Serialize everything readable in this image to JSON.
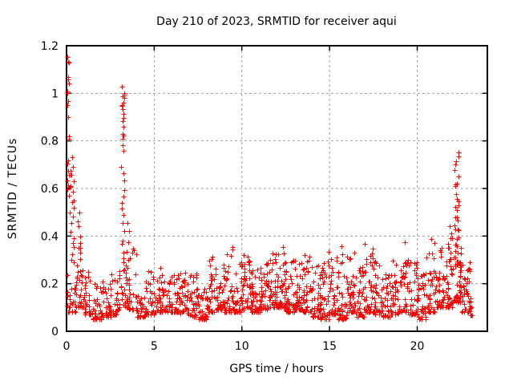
{
  "chart_data": {
    "type": "scatter",
    "title": "Day 210 of 2023, SRMTID for receiver aqui",
    "xlabel": "GPS time / hours",
    "ylabel": "SRMTID / TECUs",
    "xlim": [
      0,
      24
    ],
    "ylim": [
      0,
      1.2
    ],
    "xticks": [
      0,
      5,
      10,
      15,
      20
    ],
    "yticks": [
      0,
      0.2,
      0.4,
      0.6,
      0.8,
      1,
      1.2
    ],
    "grid": true,
    "legend": "none",
    "marker": "plus",
    "marker_color": "#ff0000",
    "grid_color": "#9e9e9e",
    "border_color": "#000000",
    "background": "#ffffff",
    "series_name": "SRMTID",
    "peak_columns": [
      {
        "x": 0.07,
        "jitter": 0.08,
        "ys": [
          1.15,
          1.13,
          1.12,
          1.07,
          1.06,
          1.05,
          1.02,
          1.0,
          0.97,
          0.95,
          0.9,
          0.81,
          0.8,
          0.72,
          0.7,
          0.68,
          0.66,
          0.64,
          0.62,
          0.6,
          0.58
        ]
      },
      {
        "x": 0.32,
        "jitter": 0.12,
        "ys": [
          0.72,
          0.7,
          0.68,
          0.66,
          0.65,
          0.63,
          0.62,
          0.6,
          0.58,
          0.56,
          0.55,
          0.52,
          0.5,
          0.48,
          0.45,
          0.42,
          0.4,
          0.38,
          0.35,
          0.33,
          0.3,
          0.28
        ]
      },
      {
        "x": 0.72,
        "jitter": 0.15,
        "ys": [
          0.5,
          0.46,
          0.43,
          0.4,
          0.38,
          0.36,
          0.34,
          0.32,
          0.3,
          0.28,
          0.26,
          0.24,
          0.22
        ]
      },
      {
        "x": 3.22,
        "jitter": 0.09,
        "ys": [
          1.02,
          1.0,
          0.99,
          0.98,
          0.97,
          0.96,
          0.95,
          0.94,
          0.93,
          0.92,
          0.9,
          0.88,
          0.86,
          0.84,
          0.82,
          0.8,
          0.78,
          0.75,
          0.7,
          0.66,
          0.63,
          0.6,
          0.57,
          0.54,
          0.51,
          0.48,
          0.45,
          0.42,
          0.39,
          0.36,
          0.33,
          0.3,
          0.28,
          0.26
        ]
      },
      {
        "x": 3.5,
        "jitter": 0.12,
        "ys": [
          0.46,
          0.42,
          0.38,
          0.34,
          0.31,
          0.28,
          0.25,
          0.22,
          0.2
        ]
      },
      {
        "x": 21.9,
        "jitter": 0.1,
        "ys": [
          0.44,
          0.41,
          0.38,
          0.35,
          0.32,
          0.3
        ]
      },
      {
        "x": 22.25,
        "jitter": 0.11,
        "ys": [
          0.75,
          0.73,
          0.72,
          0.7,
          0.68,
          0.65,
          0.63,
          0.62,
          0.6,
          0.58,
          0.56,
          0.55,
          0.53,
          0.52,
          0.5,
          0.48,
          0.47,
          0.46,
          0.45,
          0.44,
          0.43,
          0.42,
          0.4,
          0.38,
          0.37,
          0.36,
          0.35,
          0.34,
          0.33,
          0.32,
          0.3,
          0.29,
          0.28
        ]
      },
      {
        "x": 22.45,
        "jitter": 0.08,
        "ys": [
          0.35,
          0.32,
          0.3,
          0.28,
          0.26,
          0.24,
          0.22,
          0.2,
          0.18
        ]
      }
    ],
    "density_bins": [
      [
        0.0,
        0.5,
        0.08,
        0.25,
        22
      ],
      [
        0.5,
        1.0,
        0.1,
        0.33,
        26
      ],
      [
        1.0,
        1.5,
        0.07,
        0.28,
        30
      ],
      [
        1.5,
        2.0,
        0.05,
        0.2,
        34
      ],
      [
        2.0,
        2.5,
        0.06,
        0.22,
        34
      ],
      [
        2.5,
        3.0,
        0.07,
        0.3,
        30
      ],
      [
        3.0,
        3.5,
        0.1,
        0.27,
        26
      ],
      [
        3.5,
        4.0,
        0.09,
        0.38,
        26
      ],
      [
        4.0,
        4.5,
        0.06,
        0.16,
        30
      ],
      [
        4.5,
        5.0,
        0.07,
        0.26,
        30
      ],
      [
        5.0,
        5.5,
        0.08,
        0.3,
        32
      ],
      [
        5.5,
        6.0,
        0.08,
        0.24,
        32
      ],
      [
        6.0,
        6.5,
        0.08,
        0.26,
        32
      ],
      [
        6.5,
        7.0,
        0.07,
        0.25,
        32
      ],
      [
        7.0,
        7.5,
        0.06,
        0.25,
        34
      ],
      [
        7.5,
        8.0,
        0.05,
        0.18,
        34
      ],
      [
        8.0,
        8.5,
        0.08,
        0.33,
        36
      ],
      [
        8.5,
        9.0,
        0.09,
        0.31,
        36
      ],
      [
        9.0,
        9.5,
        0.08,
        0.37,
        36
      ],
      [
        9.5,
        10.0,
        0.08,
        0.3,
        36
      ],
      [
        10.0,
        10.5,
        0.09,
        0.33,
        40
      ],
      [
        10.5,
        11.0,
        0.08,
        0.26,
        40
      ],
      [
        11.0,
        11.5,
        0.09,
        0.3,
        40
      ],
      [
        11.5,
        12.0,
        0.1,
        0.36,
        40
      ],
      [
        12.0,
        12.5,
        0.1,
        0.37,
        44
      ],
      [
        12.5,
        13.0,
        0.08,
        0.3,
        40
      ],
      [
        13.0,
        13.5,
        0.09,
        0.3,
        40
      ],
      [
        13.5,
        14.0,
        0.08,
        0.33,
        40
      ],
      [
        14.0,
        14.5,
        0.06,
        0.28,
        40
      ],
      [
        14.5,
        15.0,
        0.05,
        0.34,
        40
      ],
      [
        15.0,
        15.5,
        0.07,
        0.33,
        36
      ],
      [
        15.5,
        16.0,
        0.05,
        0.37,
        36
      ],
      [
        16.0,
        16.5,
        0.08,
        0.33,
        36
      ],
      [
        16.5,
        17.0,
        0.06,
        0.28,
        36
      ],
      [
        17.0,
        17.5,
        0.08,
        0.38,
        36
      ],
      [
        17.5,
        18.0,
        0.07,
        0.3,
        36
      ],
      [
        18.0,
        18.5,
        0.06,
        0.25,
        36
      ],
      [
        18.5,
        19.0,
        0.07,
        0.3,
        36
      ],
      [
        19.0,
        19.5,
        0.08,
        0.4,
        36
      ],
      [
        19.5,
        20.0,
        0.07,
        0.3,
        36
      ],
      [
        20.0,
        20.5,
        0.05,
        0.28,
        36
      ],
      [
        20.5,
        21.0,
        0.08,
        0.4,
        36
      ],
      [
        21.0,
        21.5,
        0.1,
        0.35,
        40
      ],
      [
        21.5,
        22.0,
        0.1,
        0.4,
        40
      ],
      [
        22.0,
        22.5,
        0.12,
        0.32,
        36
      ],
      [
        22.5,
        23.0,
        0.08,
        0.3,
        40
      ],
      [
        23.0,
        23.15,
        0.06,
        0.15,
        8
      ]
    ]
  }
}
